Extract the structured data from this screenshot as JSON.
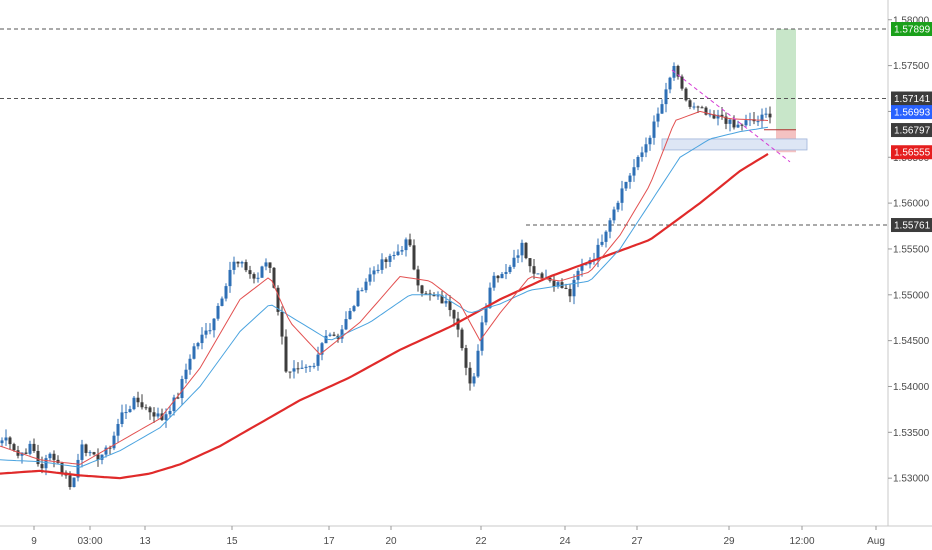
{
  "chart_data": {
    "type": "candlestick",
    "colors": {
      "up": "#2e6fb5",
      "down": "#3d3d3d",
      "ema_fast": "#e25050",
      "ema_mid": "#4aa3df",
      "ema_slow": "#e02a2a",
      "trendline": "#d63cd6",
      "target_zone": "#c8e6c9",
      "stop_zone": "#f4c2c2",
      "demand_zone": "#dde6f5",
      "target_badge": "#1aa01a",
      "stop_badge": "#e51e1e",
      "blue_badge": "#2962ff",
      "dark_badge": "#3c3c3c"
    },
    "ylim": [
      1.525,
      1.5815
    ],
    "y_ticks": [
      "1.58000",
      "1.57500",
      "1.57000",
      "1.56500",
      "1.56000",
      "1.55500",
      "1.55000",
      "1.54500",
      "1.54000",
      "1.53500",
      "1.53000"
    ],
    "x_ticks": [
      "9",
      "03:00",
      "13",
      "15",
      "17",
      "20",
      "22",
      "24",
      "27",
      "29",
      "12:00",
      "Aug"
    ],
    "price_badges": [
      {
        "label": "1.57899",
        "value": 1.57899,
        "kind": "target"
      },
      {
        "label": "1.57141",
        "value": 1.57141,
        "kind": "dark"
      },
      {
        "label": "1.56993",
        "value": 1.56993,
        "kind": "blue"
      },
      {
        "label": "1.56797",
        "value": 1.56797,
        "kind": "dark"
      },
      {
        "label": "1.56555",
        "value": 1.56555,
        "kind": "stop"
      },
      {
        "label": "1.55761",
        "value": 1.55761,
        "kind": "dark"
      }
    ],
    "horizontal_levels": [
      1.57899,
      1.57141,
      1.55761
    ],
    "close_anchors": [
      [
        0,
        1.534
      ],
      [
        8,
        1.5345
      ],
      [
        18,
        1.5325
      ],
      [
        32,
        1.5335
      ],
      [
        40,
        1.531
      ],
      [
        52,
        1.5328
      ],
      [
        64,
        1.5305
      ],
      [
        72,
        1.529
      ],
      [
        82,
        1.534
      ],
      [
        92,
        1.532
      ],
      [
        108,
        1.533
      ],
      [
        122,
        1.537
      ],
      [
        136,
        1.5385
      ],
      [
        148,
        1.5375
      ],
      [
        162,
        1.5365
      ],
      [
        178,
        1.539
      ],
      [
        192,
        1.544
      ],
      [
        210,
        1.5465
      ],
      [
        222,
        1.55
      ],
      [
        232,
        1.5535
      ],
      [
        245,
        1.553
      ],
      [
        256,
        1.5515
      ],
      [
        268,
        1.554
      ],
      [
        276,
        1.55
      ],
      [
        286,
        1.542
      ],
      [
        300,
        1.5415
      ],
      [
        314,
        1.542
      ],
      [
        326,
        1.546
      ],
      [
        338,
        1.5455
      ],
      [
        350,
        1.548
      ],
      [
        362,
        1.551
      ],
      [
        376,
        1.553
      ],
      [
        392,
        1.554
      ],
      [
        408,
        1.556
      ],
      [
        416,
        1.552
      ],
      [
        424,
        1.55
      ],
      [
        440,
        1.5495
      ],
      [
        452,
        1.5485
      ],
      [
        460,
        1.546
      ],
      [
        466,
        1.542
      ],
      [
        472,
        1.539
      ],
      [
        480,
        1.546
      ],
      [
        492,
        1.552
      ],
      [
        504,
        1.5525
      ],
      [
        516,
        1.554
      ],
      [
        522,
        1.556
      ],
      [
        530,
        1.553
      ],
      [
        544,
        1.552
      ],
      [
        560,
        1.551
      ],
      [
        570,
        1.55
      ],
      [
        580,
        1.553
      ],
      [
        596,
        1.5545
      ],
      [
        612,
        1.559
      ],
      [
        624,
        1.562
      ],
      [
        640,
        1.565
      ],
      [
        656,
        1.569
      ],
      [
        666,
        1.572
      ],
      [
        674,
        1.575
      ],
      [
        680,
        1.5725
      ],
      [
        690,
        1.5705
      ],
      [
        702,
        1.57
      ],
      [
        712,
        1.569
      ],
      [
        722,
        1.5695
      ],
      [
        734,
        1.5682
      ],
      [
        746,
        1.5688
      ],
      [
        758,
        1.569
      ],
      [
        770,
        1.5698
      ]
    ],
    "ema_fast": [
      [
        0,
        1.5335
      ],
      [
        40,
        1.532
      ],
      [
        80,
        1.5315
      ],
      [
        120,
        1.534
      ],
      [
        160,
        1.5365
      ],
      [
        200,
        1.542
      ],
      [
        240,
        1.5495
      ],
      [
        270,
        1.552
      ],
      [
        290,
        1.547
      ],
      [
        320,
        1.5435
      ],
      [
        360,
        1.547
      ],
      [
        400,
        1.552
      ],
      [
        430,
        1.5515
      ],
      [
        460,
        1.549
      ],
      [
        480,
        1.545
      ],
      [
        500,
        1.548
      ],
      [
        530,
        1.552
      ],
      [
        560,
        1.5515
      ],
      [
        590,
        1.5525
      ],
      [
        620,
        1.5565
      ],
      [
        650,
        1.562
      ],
      [
        675,
        1.569
      ],
      [
        700,
        1.57
      ],
      [
        730,
        1.5692
      ],
      [
        770,
        1.569
      ]
    ],
    "ema_mid": [
      [
        0,
        1.532
      ],
      [
        40,
        1.5318
      ],
      [
        80,
        1.5312
      ],
      [
        120,
        1.533
      ],
      [
        160,
        1.5355
      ],
      [
        200,
        1.54
      ],
      [
        240,
        1.546
      ],
      [
        270,
        1.549
      ],
      [
        300,
        1.547
      ],
      [
        330,
        1.545
      ],
      [
        370,
        1.547
      ],
      [
        410,
        1.55
      ],
      [
        440,
        1.55
      ],
      [
        470,
        1.548
      ],
      [
        500,
        1.549
      ],
      [
        530,
        1.5505
      ],
      [
        560,
        1.551
      ],
      [
        590,
        1.5515
      ],
      [
        620,
        1.555
      ],
      [
        650,
        1.56
      ],
      [
        680,
        1.565
      ],
      [
        710,
        1.567
      ],
      [
        740,
        1.5678
      ],
      [
        770,
        1.5683
      ]
    ],
    "ema_slow": [
      [
        0,
        1.5305
      ],
      [
        40,
        1.5308
      ],
      [
        80,
        1.5303
      ],
      [
        120,
        1.53
      ],
      [
        150,
        1.5305
      ],
      [
        180,
        1.5315
      ],
      [
        220,
        1.5335
      ],
      [
        260,
        1.536
      ],
      [
        300,
        1.5385
      ],
      [
        350,
        1.541
      ],
      [
        400,
        1.544
      ],
      [
        450,
        1.5465
      ],
      [
        500,
        1.5495
      ],
      [
        550,
        1.552
      ],
      [
        600,
        1.554
      ],
      [
        650,
        1.556
      ],
      [
        700,
        1.56
      ],
      [
        740,
        1.5635
      ],
      [
        770,
        1.5655
      ]
    ]
  }
}
